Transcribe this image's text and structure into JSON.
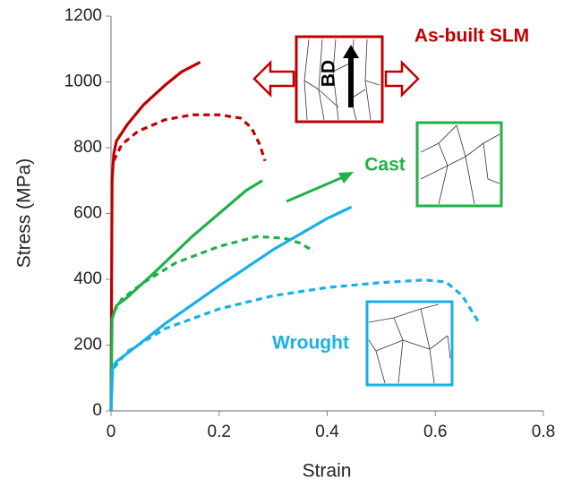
{
  "chart_data": {
    "type": "line",
    "xlabel": "Strain",
    "ylabel": "Stress (MPa)",
    "xlim": [
      0,
      0.8
    ],
    "xticks": [
      0,
      0.2,
      0.4,
      0.6,
      0.8
    ],
    "ylim": [
      0,
      1200
    ],
    "yticks": [
      0,
      200,
      400,
      600,
      800,
      1000,
      1200
    ],
    "series": [
      {
        "color": "#c00000",
        "dash": false,
        "x": [
          0,
          0.002,
          0.005,
          0.01,
          0.03,
          0.06,
          0.1,
          0.13,
          0.165
        ],
        "values": [
          0,
          700,
          780,
          820,
          870,
          930,
          990,
          1030,
          1060
        ]
      },
      {
        "color": "#c00000",
        "dash": true,
        "x": [
          0.005,
          0.02,
          0.05,
          0.1,
          0.15,
          0.2,
          0.24,
          0.26,
          0.275,
          0.285
        ],
        "values": [
          760,
          810,
          850,
          885,
          900,
          900,
          890,
          860,
          810,
          760
        ]
      },
      {
        "color": "#1fb14a",
        "dash": false,
        "x": [
          0,
          0.002,
          0.01,
          0.03,
          0.08,
          0.15,
          0.2,
          0.25,
          0.28
        ],
        "values": [
          0,
          280,
          320,
          345,
          420,
          530,
          600,
          670,
          700
        ]
      },
      {
        "color": "#1fb14a",
        "dash": true,
        "x": [
          0.005,
          0.02,
          0.06,
          0.12,
          0.2,
          0.27,
          0.32,
          0.35,
          0.375
        ],
        "values": [
          300,
          340,
          390,
          450,
          500,
          530,
          525,
          510,
          485
        ]
      },
      {
        "color": "#18b0e8",
        "dash": false,
        "x": [
          0,
          0.003,
          0.01,
          0.05,
          0.1,
          0.2,
          0.3,
          0.4,
          0.445
        ],
        "values": [
          0,
          130,
          150,
          200,
          265,
          380,
          490,
          585,
          620
        ]
      },
      {
        "color": "#18b0e8",
        "dash": true,
        "x": [
          0.005,
          0.03,
          0.1,
          0.2,
          0.3,
          0.4,
          0.5,
          0.58,
          0.62,
          0.65,
          0.68
        ],
        "values": [
          130,
          180,
          250,
          310,
          350,
          375,
          390,
          398,
          392,
          350,
          270
        ]
      }
    ],
    "annotations": [
      {
        "text": "As-built SLM",
        "color": "#c00000"
      },
      {
        "text": "Cast",
        "color": "#1fb14a"
      },
      {
        "text": "Wrought",
        "color": "#18b0e8"
      },
      {
        "text": "BD",
        "color": "#000000"
      }
    ]
  }
}
